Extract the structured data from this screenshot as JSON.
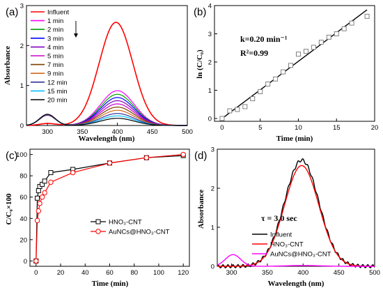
{
  "panels": {
    "a": {
      "label": "(a)",
      "xlabel": "Wavelength (nm)",
      "ylabel": "Absorbance",
      "xlim": [
        270,
        500
      ],
      "ylim": [
        0,
        3
      ],
      "xticks": [
        300,
        350,
        400,
        450,
        500
      ],
      "yticks": [
        0,
        1,
        2,
        3
      ]
    },
    "b": {
      "label": "(b)",
      "xlabel": "Time (min)",
      "ylabel": "ln (C/C₀)",
      "xlim": [
        -1,
        20
      ],
      "ylim": [
        -0.1,
        4
      ],
      "xticks": [
        0,
        5,
        10,
        15,
        20
      ],
      "yticks": [
        0,
        1,
        2,
        3,
        4
      ],
      "k_text": "k=0.20 min⁻¹",
      "r2_text": "R²=0.99"
    },
    "c": {
      "label": "(c)",
      "xlabel": "Time (min)",
      "ylabel": "C/C₀×100",
      "xlim": [
        -5,
        125
      ],
      "ylim": [
        -5,
        105
      ],
      "xticks": [
        0,
        20,
        40,
        60,
        80,
        100,
        120
      ],
      "yticks": [
        0,
        20,
        40,
        60,
        80,
        100
      ]
    },
    "d": {
      "label": "(d)",
      "xlabel": "Wavelength (nm)",
      "ylabel": "Absorbance",
      "xlim": [
        280,
        500
      ],
      "ylim": [
        0,
        3
      ],
      "xticks": [
        300,
        350,
        400,
        450,
        500
      ],
      "yticks": [
        0,
        1,
        2,
        3
      ],
      "tau_text": "τ = 3.0 sec"
    }
  },
  "chart_data": [
    {
      "panel": "a",
      "type": "line",
      "xlabel": "Wavelength (nm)",
      "ylabel": "Absorbance",
      "xlim": [
        270,
        500
      ],
      "ylim": [
        0,
        3
      ],
      "legend_position": "top-left",
      "legend_arrow": true,
      "series": [
        {
          "name": "Influent",
          "color": "#ff0000",
          "peak": 2.58,
          "peak_x": 398
        },
        {
          "name": "1 min",
          "color": "#ff00ff",
          "peak": 0.87,
          "peak_x": 400
        },
        {
          "name": "2 min",
          "color": "#00a000",
          "peak": 0.78,
          "peak_x": 400
        },
        {
          "name": "3 min",
          "color": "#0000ff",
          "peak": 0.7,
          "peak_x": 400
        },
        {
          "name": "4 min",
          "color": "#8000c0",
          "peak": 0.62,
          "peak_x": 400
        },
        {
          "name": "5 min",
          "color": "#cc00cc",
          "peak": 0.54,
          "peak_x": 400
        },
        {
          "name": "7 min",
          "color": "#7b3f00",
          "peak": 0.46,
          "peak_x": 400
        },
        {
          "name": "9 min",
          "color": "#d2691e",
          "peak": 0.38,
          "peak_x": 400
        },
        {
          "name": "12 min",
          "color": "#333399",
          "peak": 0.3,
          "peak_x": 400
        },
        {
          "name": "15 min",
          "color": "#00bfff",
          "peak": 0.24,
          "peak_x": 400
        },
        {
          "name": "20 min",
          "color": "#000000",
          "peak": 0.18,
          "peak_x": 400
        }
      ],
      "side_peak": {
        "x": 300,
        "y": 0.28
      }
    },
    {
      "panel": "b",
      "type": "scatter",
      "xlabel": "Time (min)",
      "ylabel": "ln (C/C₀)",
      "points": [
        {
          "x": 0,
          "y": 0.0
        },
        {
          "x": 1,
          "y": 0.27
        },
        {
          "x": 2,
          "y": 0.32
        },
        {
          "x": 3,
          "y": 0.42
        },
        {
          "x": 4,
          "y": 0.7
        },
        {
          "x": 5,
          "y": 0.95
        },
        {
          "x": 6,
          "y": 1.22
        },
        {
          "x": 7,
          "y": 1.4
        },
        {
          "x": 8,
          "y": 1.65
        },
        {
          "x": 9,
          "y": 1.88
        },
        {
          "x": 10,
          "y": 2.28
        },
        {
          "x": 11,
          "y": 2.38
        },
        {
          "x": 12,
          "y": 2.52
        },
        {
          "x": 13,
          "y": 2.7
        },
        {
          "x": 14,
          "y": 2.88
        },
        {
          "x": 15,
          "y": 3.0
        },
        {
          "x": 16,
          "y": 3.18
        },
        {
          "x": 17,
          "y": 3.38
        },
        {
          "x": 19,
          "y": 3.62
        }
      ],
      "fit_line": {
        "x": [
          0,
          19
        ],
        "y": [
          0,
          3.85
        ]
      },
      "marker_color": "#808080",
      "line_color": "#000000"
    },
    {
      "panel": "c",
      "type": "line",
      "xlabel": "Time (min)",
      "ylabel": "C/C₀×100",
      "legend_position": "bottom-center",
      "series": [
        {
          "name": "HNO₃-CNT",
          "color": "#000000",
          "marker": "square",
          "points": [
            {
              "x": 0,
              "y": 0
            },
            {
              "x": 1,
              "y": 59
            },
            {
              "x": 2,
              "y": 66
            },
            {
              "x": 3,
              "y": 70
            },
            {
              "x": 5,
              "y": 72
            },
            {
              "x": 7,
              "y": 75
            },
            {
              "x": 12,
              "y": 83
            },
            {
              "x": 30,
              "y": 86
            },
            {
              "x": 60,
              "y": 92
            },
            {
              "x": 90,
              "y": 97
            },
            {
              "x": 120,
              "y": 99
            }
          ]
        },
        {
          "name": "AuNCs@HNO₃-CNT",
          "color": "#ff0000",
          "marker": "circle",
          "points": [
            {
              "x": 0,
              "y": 0
            },
            {
              "x": 1,
              "y": 38
            },
            {
              "x": 2,
              "y": 47
            },
            {
              "x": 3,
              "y": 54
            },
            {
              "x": 5,
              "y": 60
            },
            {
              "x": 7,
              "y": 64
            },
            {
              "x": 12,
              "y": 74
            },
            {
              "x": 30,
              "y": 83
            },
            {
              "x": 60,
              "y": 92
            },
            {
              "x": 90,
              "y": 97
            },
            {
              "x": 120,
              "y": 100
            }
          ]
        }
      ]
    },
    {
      "panel": "d",
      "type": "line",
      "xlabel": "Wavelength (nm)",
      "ylabel": "Absorbance",
      "legend_position": "bottom-left",
      "series": [
        {
          "name": "Influent",
          "color": "#000000",
          "peak": 2.72,
          "peak_x": 398
        },
        {
          "name": "HNO₃-CNT",
          "color": "#ff0000",
          "peak": 2.58,
          "peak_x": 398
        },
        {
          "name": "AuNCs@HNO₃-CNT",
          "color": "#ff00ff",
          "peak": 0.3,
          "peak_x": 302
        }
      ]
    }
  ]
}
